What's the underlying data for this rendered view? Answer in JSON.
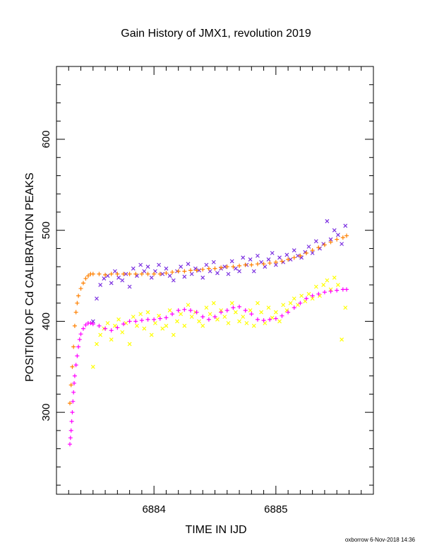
{
  "chart_data": {
    "type": "scatter",
    "title": "Gain History of JMX1, revolution 2019",
    "xlabel": "TIME IN IJD",
    "ylabel": "POSITION OF Cd CALIBRATION PEAKS",
    "xlim": [
      6883.2,
      6885.8
    ],
    "ylim": [
      210,
      680
    ],
    "x_ticks": [
      6884,
      6885
    ],
    "x_tick_labels": [
      "6884",
      "6885"
    ],
    "y_ticks": [
      300,
      400,
      500,
      600
    ],
    "y_tick_labels": [
      "300",
      "400",
      "500",
      "600"
    ],
    "grid": false,
    "legend": "none",
    "series": [
      {
        "marker": "x",
        "color": "#7a2ee0",
        "x": [
          6883.5,
          6883.53,
          6883.56,
          6883.59,
          6883.62,
          6883.65,
          6883.68,
          6883.71,
          6883.74,
          6883.77,
          6883.8,
          6883.83,
          6883.86,
          6883.89,
          6883.92,
          6883.95,
          6883.98,
          6884.01,
          6884.04,
          6884.07,
          6884.1,
          6884.13,
          6884.16,
          6884.19,
          6884.22,
          6884.25,
          6884.28,
          6884.31,
          6884.34,
          6884.37,
          6884.4,
          6884.43,
          6884.46,
          6884.49,
          6884.52,
          6884.55,
          6884.58,
          6884.61,
          6884.64,
          6884.67,
          6884.7,
          6884.73,
          6884.76,
          6884.79,
          6884.82,
          6884.85,
          6884.88,
          6884.91,
          6884.94,
          6884.97,
          6885.0,
          6885.03,
          6885.06,
          6885.09,
          6885.12,
          6885.15,
          6885.18,
          6885.21,
          6885.24,
          6885.27,
          6885.3,
          6885.33,
          6885.36,
          6885.39,
          6885.42,
          6885.45,
          6885.48,
          6885.51,
          6885.54,
          6885.57
        ],
        "y": [
          400,
          425,
          440,
          447,
          450,
          442,
          455,
          448,
          445,
          452,
          438,
          458,
          450,
          462,
          455,
          460,
          448,
          455,
          462,
          452,
          458,
          450,
          445,
          455,
          460,
          449,
          463,
          452,
          458,
          456,
          448,
          462,
          455,
          465,
          453,
          458,
          460,
          452,
          466,
          458,
          455,
          470,
          462,
          468,
          455,
          472,
          465,
          460,
          468,
          475,
          462,
          470,
          465,
          473,
          468,
          478,
          472,
          470,
          476,
          482,
          475,
          488,
          480,
          485,
          510,
          490,
          500,
          495,
          485,
          505
        ]
      },
      {
        "marker": "x",
        "color": "#ffff00",
        "x": [
          6883.5,
          6883.53,
          6883.56,
          6883.59,
          6883.62,
          6883.65,
          6883.68,
          6883.71,
          6883.74,
          6883.77,
          6883.8,
          6883.83,
          6883.86,
          6883.89,
          6883.92,
          6883.95,
          6883.98,
          6884.01,
          6884.04,
          6884.07,
          6884.1,
          6884.13,
          6884.16,
          6884.19,
          6884.22,
          6884.25,
          6884.28,
          6884.31,
          6884.34,
          6884.37,
          6884.4,
          6884.43,
          6884.46,
          6884.49,
          6884.52,
          6884.55,
          6884.58,
          6884.61,
          6884.64,
          6884.67,
          6884.7,
          6884.73,
          6884.76,
          6884.79,
          6884.82,
          6884.85,
          6884.88,
          6884.91,
          6884.94,
          6884.97,
          6885.0,
          6885.03,
          6885.06,
          6885.09,
          6885.12,
          6885.15,
          6885.18,
          6885.21,
          6885.24,
          6885.27,
          6885.3,
          6885.33,
          6885.36,
          6885.39,
          6885.42,
          6885.45,
          6885.48,
          6885.51,
          6885.54,
          6885.57
        ],
        "y": [
          350,
          375,
          385,
          392,
          398,
          380,
          395,
          402,
          388,
          398,
          375,
          405,
          395,
          408,
          392,
          410,
          385,
          398,
          406,
          392,
          395,
          412,
          385,
          400,
          408,
          395,
          418,
          405,
          410,
          400,
          395,
          415,
          408,
          420,
          402,
          412,
          405,
          398,
          420,
          410,
          400,
          405,
          398,
          412,
          395,
          420,
          410,
          398,
          415,
          404,
          410,
          400,
          418,
          412,
          420,
          425,
          418,
          428,
          422,
          430,
          425,
          438,
          428,
          440,
          445,
          435,
          448,
          440,
          380,
          415
        ]
      },
      {
        "marker": "+",
        "color": "#ff8000",
        "x": [
          6883.31,
          6883.32,
          6883.33,
          6883.34,
          6883.35,
          6883.36,
          6883.37,
          6883.38,
          6883.4,
          6883.42,
          6883.44,
          6883.46,
          6883.48,
          6883.5,
          6883.55,
          6883.6,
          6883.65,
          6883.7,
          6883.75,
          6883.8,
          6883.85,
          6883.9,
          6883.95,
          6884.0,
          6884.05,
          6884.1,
          6884.15,
          6884.2,
          6884.25,
          6884.3,
          6884.35,
          6884.4,
          6884.45,
          6884.5,
          6884.55,
          6884.6,
          6884.65,
          6884.7,
          6884.75,
          6884.8,
          6884.85,
          6884.9,
          6884.95,
          6885.0,
          6885.05,
          6885.1,
          6885.15,
          6885.2,
          6885.25,
          6885.3,
          6885.35,
          6885.4,
          6885.45,
          6885.5,
          6885.55,
          6885.58
        ],
        "y": [
          310,
          330,
          350,
          372,
          395,
          410,
          420,
          428,
          436,
          442,
          447,
          450,
          452,
          452,
          452,
          451,
          452,
          452,
          452,
          452,
          452,
          452,
          452,
          452,
          452,
          453,
          454,
          455,
          455,
          456,
          456,
          457,
          458,
          458,
          459,
          460,
          460,
          461,
          462,
          462,
          463,
          463,
          464,
          465,
          466,
          468,
          470,
          472,
          475,
          478,
          481,
          484,
          487,
          490,
          492,
          494
        ]
      },
      {
        "marker": "+",
        "color": "#ff00ff",
        "x": [
          6883.31,
          6883.315,
          6883.32,
          6883.325,
          6883.33,
          6883.335,
          6883.34,
          6883.345,
          6883.35,
          6883.36,
          6883.37,
          6883.38,
          6883.39,
          6883.4,
          6883.42,
          6883.44,
          6883.46,
          6883.48,
          6883.5,
          6883.55,
          6883.6,
          6883.65,
          6883.7,
          6883.75,
          6883.8,
          6883.85,
          6883.9,
          6883.95,
          6884.0,
          6884.05,
          6884.1,
          6884.15,
          6884.2,
          6884.25,
          6884.3,
          6884.35,
          6884.4,
          6884.45,
          6884.5,
          6884.55,
          6884.6,
          6884.65,
          6884.7,
          6884.75,
          6884.8,
          6884.85,
          6884.9,
          6884.95,
          6885.0,
          6885.05,
          6885.1,
          6885.15,
          6885.2,
          6885.25,
          6885.3,
          6885.35,
          6885.4,
          6885.45,
          6885.5,
          6885.55,
          6885.58
        ],
        "y": [
          265,
          272,
          280,
          290,
          300,
          312,
          322,
          332,
          340,
          352,
          362,
          372,
          380,
          386,
          392,
          396,
          398,
          398,
          397,
          395,
          392,
          390,
          393,
          397,
          400,
          400,
          401,
          402,
          402,
          403,
          404,
          408,
          412,
          413,
          412,
          410,
          405,
          402,
          405,
          410,
          412,
          415,
          416,
          412,
          408,
          402,
          401,
          402,
          403,
          406,
          410,
          415,
          420,
          425,
          428,
          430,
          432,
          433,
          434,
          435,
          435
        ]
      }
    ]
  },
  "footer": {
    "credit": "oxborrow  6-Nov-2018 14:36"
  }
}
